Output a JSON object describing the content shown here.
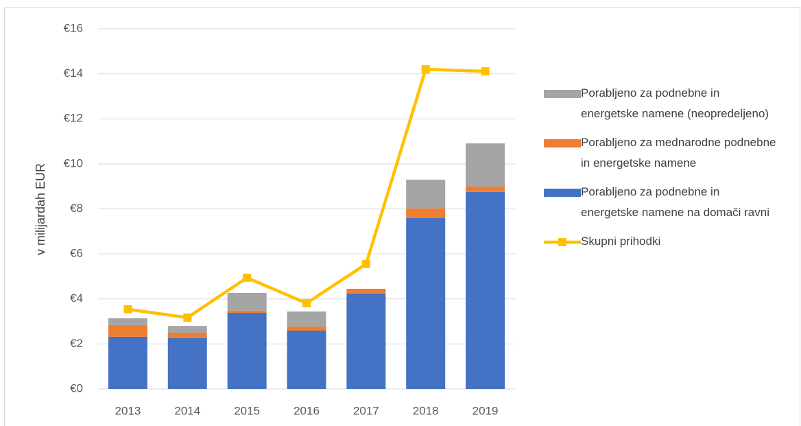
{
  "chart_data": {
    "type": "bar",
    "stacked": true,
    "ylabel": "v milijardah EUR",
    "categories": [
      "2013",
      "2014",
      "2015",
      "2016",
      "2017",
      "2018",
      "2019"
    ],
    "series": [
      {
        "name": "Porabljeno za podnebne in energetske namene na domači ravni",
        "color": "#4472c4",
        "values": [
          2.32,
          2.26,
          3.38,
          2.59,
          4.24,
          7.59,
          8.75
        ]
      },
      {
        "name": "Porabljeno za mednarodne podnebne in energetske namene",
        "color": "#ed7d31",
        "values": [
          0.52,
          0.24,
          0.1,
          0.18,
          0.21,
          0.43,
          0.24
        ]
      },
      {
        "name": "Porabljeno za podnebne in energetske namene (neopredeljeno)",
        "color": "#a5a5a5",
        "values": [
          0.3,
          0.3,
          0.79,
          0.67,
          0,
          1.28,
          1.92
        ]
      },
      {
        "name": "Skupni prihodki",
        "color": "#ffc000",
        "type": "line",
        "values": [
          3.54,
          3.17,
          4.94,
          3.81,
          5.55,
          14.2,
          14.11
        ]
      }
    ],
    "ylim": [
      0,
      16
    ],
    "yticks": [
      {
        "value": 0,
        "label": "€0"
      },
      {
        "value": 2,
        "label": "€2"
      },
      {
        "value": 4,
        "label": "€4"
      },
      {
        "value": 6,
        "label": "€6"
      },
      {
        "value": 8,
        "label": "€8"
      },
      {
        "value": 10,
        "label": "€10"
      },
      {
        "value": 12,
        "label": "€12"
      },
      {
        "value": 14,
        "label": "€14"
      },
      {
        "value": 16,
        "label": "€16"
      }
    ],
    "grid": true,
    "legend": "right"
  }
}
